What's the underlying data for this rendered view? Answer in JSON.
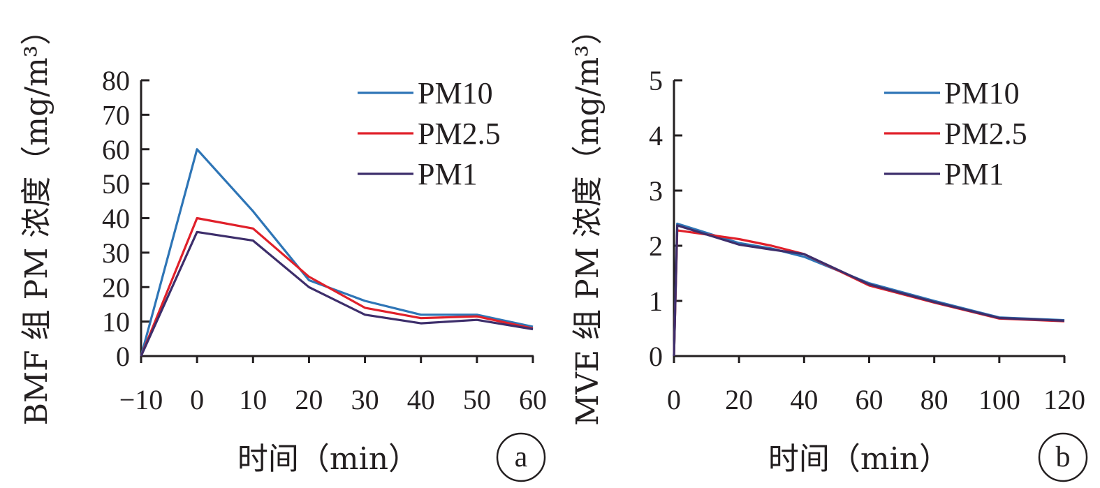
{
  "figure": {
    "panel_labels": [
      "a",
      "b"
    ]
  },
  "chart_data": [
    {
      "type": "line",
      "panel": "a",
      "xlabel": "时间（min）",
      "ylabel": "BMF 组 PM 浓度（mg/m³）",
      "x": [
        -10,
        0,
        10,
        20,
        30,
        40,
        50,
        60
      ],
      "xticks": [
        "−10",
        "0",
        "10",
        "20",
        "30",
        "40",
        "50",
        "60"
      ],
      "yticks": [
        "0",
        "10",
        "20",
        "30",
        "40",
        "50",
        "60",
        "70",
        "80"
      ],
      "xlim": [
        -10,
        60
      ],
      "ylim": [
        0,
        80
      ],
      "legend_position": "top-right",
      "series": [
        {
          "name": "PM10",
          "color": "#2e75b6",
          "values": [
            0,
            60,
            42,
            22,
            16,
            12,
            12,
            8.5
          ]
        },
        {
          "name": "PM2.5",
          "color": "#e0202a",
          "values": [
            0,
            40,
            37,
            23,
            14,
            11,
            11.5,
            8
          ]
        },
        {
          "name": "PM1",
          "color": "#3d2e6b",
          "values": [
            0,
            36,
            33.5,
            20,
            12,
            9.5,
            10.5,
            7.8
          ]
        }
      ]
    },
    {
      "type": "line",
      "panel": "b",
      "xlabel": "时间（min）",
      "ylabel": "MVE 组 PM 浓度（mg/m³）",
      "xticks": [
        "0",
        "20",
        "40",
        "60",
        "80",
        "100",
        "120"
      ],
      "yticks": [
        "0",
        "1",
        "2",
        "3",
        "4",
        "5"
      ],
      "xlim": [
        0,
        120
      ],
      "ylim": [
        0,
        5
      ],
      "legend_position": "top-right",
      "series": [
        {
          "name": "PM10",
          "color": "#2e75b6",
          "x": [
            0,
            1,
            20,
            30,
            40,
            60,
            80,
            100,
            120
          ],
          "values": [
            0,
            2.4,
            2.05,
            1.95,
            1.8,
            1.32,
            1.0,
            0.7,
            0.65
          ]
        },
        {
          "name": "PM2.5",
          "color": "#e0202a",
          "x": [
            0,
            1,
            20,
            30,
            40,
            60,
            80,
            100,
            120
          ],
          "values": [
            0,
            2.28,
            2.12,
            2.0,
            1.85,
            1.28,
            0.97,
            0.68,
            0.63
          ]
        },
        {
          "name": "PM1",
          "color": "#3d2e6b",
          "x": [
            0,
            1,
            20,
            30,
            40,
            60,
            80,
            100,
            120
          ],
          "values": [
            0,
            2.37,
            2.02,
            1.93,
            1.85,
            1.3,
            0.98,
            0.69,
            0.64
          ]
        }
      ]
    }
  ]
}
